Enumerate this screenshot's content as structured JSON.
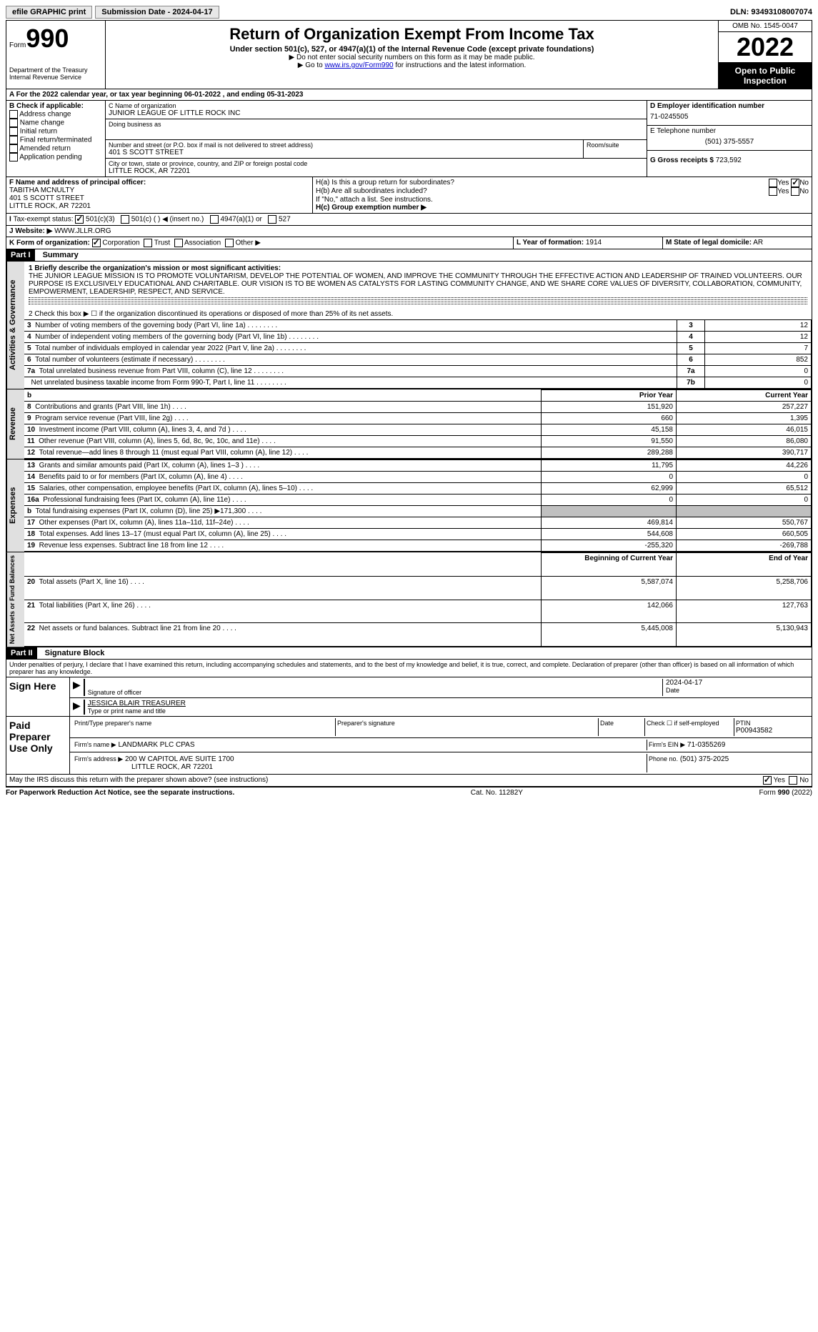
{
  "topbar": {
    "efile": "efile GRAPHIC print",
    "submission": "Submission Date - 2024-04-17",
    "dln_label": "DLN:",
    "dln": "93493108007074"
  },
  "header": {
    "form_label": "Form",
    "form_num": "990",
    "dept": "Department of the Treasury",
    "irs": "Internal Revenue Service",
    "title": "Return of Organization Exempt From Income Tax",
    "subtitle": "Under section 501(c), 527, or 4947(a)(1) of the Internal Revenue Code (except private foundations)",
    "note1": "▶ Do not enter social security numbers on this form as it may be made public.",
    "note2_pre": "▶ Go to ",
    "note2_link": "www.irs.gov/Form990",
    "note2_post": " for instructions and the latest information.",
    "omb": "OMB No. 1545-0047",
    "year": "2022",
    "open": "Open to Public Inspection"
  },
  "sectionA": {
    "cal_year": "For the 2022 calendar year, or tax year beginning 06-01-2022    , and ending 05-31-2023",
    "B_label": "B Check if applicable:",
    "B_options": [
      "Address change",
      "Name change",
      "Initial return",
      "Final return/terminated",
      "Amended return",
      "Application pending"
    ],
    "C_label": "C Name of organization",
    "org_name": "JUNIOR LEAGUE OF LITTLE ROCK INC",
    "dba_label": "Doing business as",
    "addr_label": "Number and street (or P.O. box if mail is not delivered to street address)",
    "addr": "401 S SCOTT STREET",
    "room_label": "Room/suite",
    "city_label": "City or town, state or province, country, and ZIP or foreign postal code",
    "city": "LITTLE ROCK, AR  72201",
    "D_label": "D Employer identification number",
    "ein": "71-0245505",
    "E_label": "E Telephone number",
    "phone": "(501) 375-5557",
    "G_label": "G Gross receipts $",
    "gross": "723,592",
    "F_label": "F Name and address of principal officer:",
    "officer": "TABITHA MCNULTY",
    "officer_addr1": "401 S SCOTT STREET",
    "officer_addr2": "LITTLE ROCK, AR  72201",
    "Ha_label": "H(a) Is this a group return for subordinates?",
    "Hb_label": "H(b) Are all subordinates included?",
    "Hb_note": "If \"No,\" attach a list. See instructions.",
    "Hc_label": "H(c) Group exemption number ▶",
    "yes": "Yes",
    "no": "No",
    "I_label": "Tax-exempt status:",
    "I_501c3": "501(c)(3)",
    "I_501c": "501(c) (  ) ◀ (insert no.)",
    "I_4947": "4947(a)(1) or",
    "I_527": "527",
    "J_label": "Website: ▶",
    "website": "WWW.JLLR.ORG",
    "K_label": "K Form of organization:",
    "K_corp": "Corporation",
    "K_trust": "Trust",
    "K_assoc": "Association",
    "K_other": "Other ▶",
    "L_label": "L Year of formation:",
    "L_year": "1914",
    "M_label": "M State of legal domicile:",
    "M_state": "AR"
  },
  "part1": {
    "label": "Part I",
    "title": "Summary",
    "line1_label": "1 Briefly describe the organization's mission or most significant activities:",
    "mission": "THE JUNIOR LEAGUE MISSION IS TO PROMOTE VOLUNTARISM, DEVELOP THE POTENTIAL OF WOMEN, AND IMPROVE THE COMMUNITY THROUGH THE EFFECTIVE ACTION AND LEADERSHIP OF TRAINED VOLUNTEERS. OUR PURPOSE IS EXCLUSIVELY EDUCATIONAL AND CHARITABLE. OUR VISION IS TO BE WOMEN AS CATALYSTS FOR LASTING COMMUNITY CHANGE, AND WE SHARE CORE VALUES OF DIVERSITY, COLLABORATION, COMMUNITY, EMPOWERMENT, LEADERSHIP, RESPECT, AND SERVICE.",
    "line2": "2   Check this box ▶ ☐  if the organization discontinued its operations or disposed of more than 25% of its net assets.",
    "gov_label": "Activities & Governance",
    "rev_label": "Revenue",
    "exp_label": "Expenses",
    "net_label": "Net Assets or Fund Balances",
    "rows_gov": [
      {
        "n": "3",
        "desc": "Number of voting members of the governing body (Part VI, line 1a)",
        "col": "3",
        "val": "12"
      },
      {
        "n": "4",
        "desc": "Number of independent voting members of the governing body (Part VI, line 1b)",
        "col": "4",
        "val": "12"
      },
      {
        "n": "5",
        "desc": "Total number of individuals employed in calendar year 2022 (Part V, line 2a)",
        "col": "5",
        "val": "7"
      },
      {
        "n": "6",
        "desc": "Total number of volunteers (estimate if necessary)",
        "col": "6",
        "val": "852"
      },
      {
        "n": "7a",
        "desc": "Total unrelated business revenue from Part VIII, column (C), line 12",
        "col": "7a",
        "val": "0"
      },
      {
        "n": "",
        "desc": "Net unrelated business taxable income from Form 990-T, Part I, line 11",
        "col": "7b",
        "val": "0"
      }
    ],
    "prior_year": "Prior Year",
    "current_year": "Current Year",
    "rows_rev": [
      {
        "n": "8",
        "desc": "Contributions and grants (Part VIII, line 1h)",
        "py": "151,920",
        "cy": "257,227"
      },
      {
        "n": "9",
        "desc": "Program service revenue (Part VIII, line 2g)",
        "py": "660",
        "cy": "1,395"
      },
      {
        "n": "10",
        "desc": "Investment income (Part VIII, column (A), lines 3, 4, and 7d )",
        "py": "45,158",
        "cy": "46,015"
      },
      {
        "n": "11",
        "desc": "Other revenue (Part VIII, column (A), lines 5, 6d, 8c, 9c, 10c, and 11e)",
        "py": "91,550",
        "cy": "86,080"
      },
      {
        "n": "12",
        "desc": "Total revenue—add lines 8 through 11 (must equal Part VIII, column (A), line 12)",
        "py": "289,288",
        "cy": "390,717"
      }
    ],
    "rows_exp": [
      {
        "n": "13",
        "desc": "Grants and similar amounts paid (Part IX, column (A), lines 1–3 )",
        "py": "11,795",
        "cy": "44,226"
      },
      {
        "n": "14",
        "desc": "Benefits paid to or for members (Part IX, column (A), line 4)",
        "py": "0",
        "cy": "0"
      },
      {
        "n": "15",
        "desc": "Salaries, other compensation, employee benefits (Part IX, column (A), lines 5–10)",
        "py": "62,999",
        "cy": "65,512"
      },
      {
        "n": "16a",
        "desc": "Professional fundraising fees (Part IX, column (A), line 11e)",
        "py": "0",
        "cy": "0"
      },
      {
        "n": "b",
        "desc": "Total fundraising expenses (Part IX, column (D), line 25) ▶171,300",
        "py": "",
        "cy": "",
        "grey": true
      },
      {
        "n": "17",
        "desc": "Other expenses (Part IX, column (A), lines 11a–11d, 11f–24e)",
        "py": "469,814",
        "cy": "550,767"
      },
      {
        "n": "18",
        "desc": "Total expenses. Add lines 13–17 (must equal Part IX, column (A), line 25)",
        "py": "544,608",
        "cy": "660,505"
      },
      {
        "n": "19",
        "desc": "Revenue less expenses. Subtract line 18 from line 12",
        "py": "-255,320",
        "cy": "-269,788"
      }
    ],
    "boy": "Beginning of Current Year",
    "eoy": "End of Year",
    "rows_net": [
      {
        "n": "20",
        "desc": "Total assets (Part X, line 16)",
        "py": "5,587,074",
        "cy": "5,258,706"
      },
      {
        "n": "21",
        "desc": "Total liabilities (Part X, line 26)",
        "py": "142,066",
        "cy": "127,763"
      },
      {
        "n": "22",
        "desc": "Net assets or fund balances. Subtract line 21 from line 20",
        "py": "5,445,008",
        "cy": "5,130,943"
      }
    ]
  },
  "part2": {
    "label": "Part II",
    "title": "Signature Block",
    "declaration": "Under penalties of perjury, I declare that I have examined this return, including accompanying schedules and statements, and to the best of my knowledge and belief, it is true, correct, and complete. Declaration of preparer (other than officer) is based on all information of which preparer has any knowledge.",
    "sign_here": "Sign Here",
    "sig_officer": "Signature of officer",
    "date_label": "Date",
    "sig_date": "2024-04-17",
    "typed_name": "JESSICA BLAIR TREASURER",
    "typed_label": "Type or print name and title",
    "paid_preparer": "Paid Preparer Use Only",
    "prep_name_label": "Print/Type preparer's name",
    "prep_sig_label": "Preparer's signature",
    "check_self": "Check ☐ if self-employed",
    "ptin_label": "PTIN",
    "ptin": "P00943582",
    "firm_name_label": "Firm's name   ▶",
    "firm_name": "LANDMARK PLC CPAS",
    "firm_ein_label": "Firm's EIN ▶",
    "firm_ein": "71-0355269",
    "firm_addr_label": "Firm's address ▶",
    "firm_addr1": "200 W CAPITOL AVE SUITE 1700",
    "firm_addr2": "LITTLE ROCK, AR  72201",
    "phone_label": "Phone no.",
    "phone": "(501) 375-2025",
    "discuss": "May the IRS discuss this return with the preparer shown above? (see instructions)"
  },
  "footer": {
    "paperwork": "For Paperwork Reduction Act Notice, see the separate instructions.",
    "cat": "Cat. No. 11282Y",
    "form": "Form 990 (2022)"
  }
}
